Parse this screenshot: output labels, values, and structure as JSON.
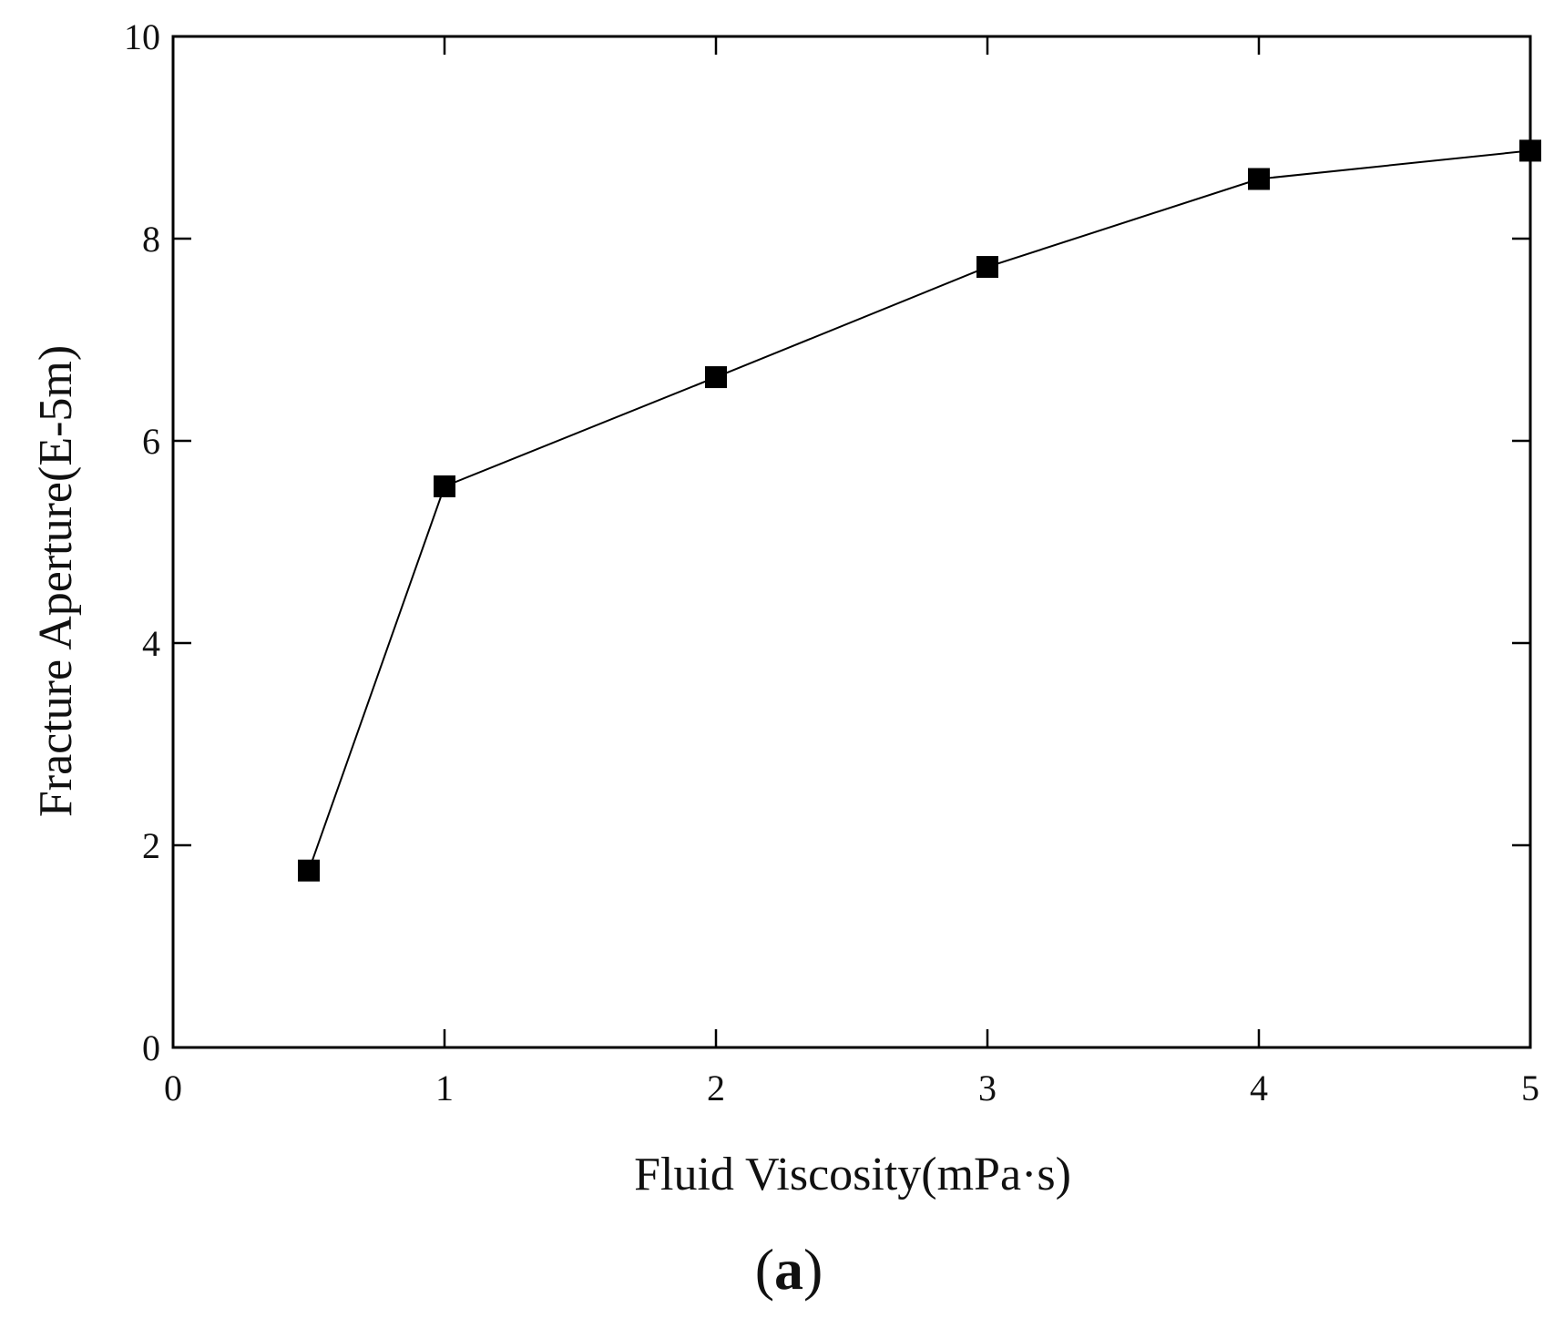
{
  "chart_data": {
    "type": "line",
    "title": "",
    "xlabel": "Fluid Viscosity(mPa·s)",
    "ylabel": "Fracture Aperture(E-5m)",
    "xlim": [
      0,
      5
    ],
    "ylim": [
      0,
      10
    ],
    "xticks": [
      "0",
      "1",
      "2",
      "3",
      "4",
      "5"
    ],
    "yticks": [
      "0",
      "2",
      "4",
      "6",
      "8",
      "10"
    ],
    "grid": false,
    "marker": "square",
    "series": [
      {
        "x": [
          0.5,
          1,
          2,
          3,
          4,
          5
        ],
        "y": [
          1.75,
          5.55,
          6.63,
          7.72,
          8.59,
          8.87
        ]
      }
    ],
    "colors": {
      "line": "#000000",
      "marker": "#000000",
      "axis": "#000000"
    }
  },
  "panel": {
    "open": "(",
    "letter": "a",
    "close": ")"
  }
}
